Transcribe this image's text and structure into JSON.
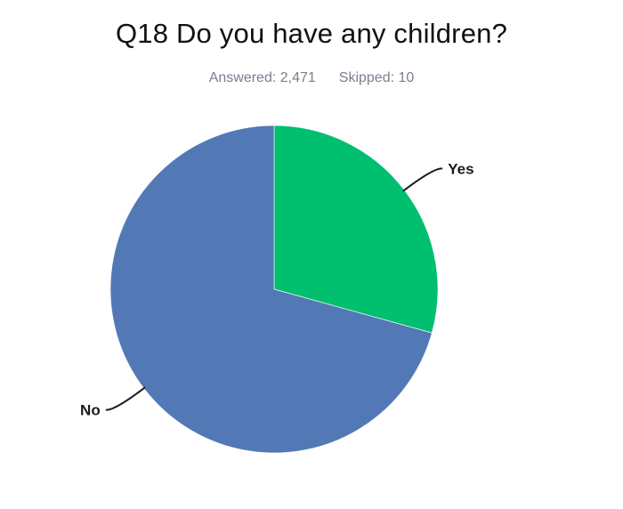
{
  "header": {
    "title": "Q18 Do you have any children?",
    "answered": "Answered: 2,471",
    "skipped": "Skipped: 10"
  },
  "chart_data": {
    "type": "pie",
    "title": "Q18 Do you have any children?",
    "answered_count": "2,471",
    "skipped_count": "10",
    "categories": [
      "Yes",
      "No"
    ],
    "values": [
      29.3,
      70.7
    ],
    "colors": [
      "#00BF6F",
      "#5279B5"
    ],
    "start_angle_deg": 0,
    "direction": "clockwise",
    "legend": "none",
    "label_placement": "outside with curved leader lines"
  },
  "style": {
    "background": "#FFFFFF",
    "title_color": "#111111",
    "subtitle_color": "#76818D",
    "label_color": "#1A1A1A",
    "leader_line_color": "#1A1A1A",
    "slice_separator_color": "rgba(255,255,255,0.85)"
  }
}
